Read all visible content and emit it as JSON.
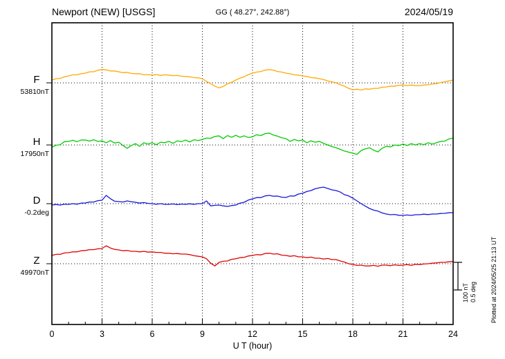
{
  "header": {
    "station": "Newport (NEW)  [USGS]",
    "coords": "GG ( 48.27°, 242.88°)",
    "date": "2024/05/19"
  },
  "footer": {
    "plotted_at": "Plotted at 2024/05/25 21:13 UT"
  },
  "chart_data": {
    "type": "line",
    "title": "Newport (NEW) [USGS] magnetogram 2024/05/19",
    "xlabel": "U T (hour)",
    "x_range": [
      0,
      24
    ],
    "x_ticks": [
      0,
      3,
      6,
      9,
      12,
      15,
      18,
      21,
      24
    ],
    "x_step_hours": 0.25,
    "grid": "dotted vertical lines every 3 hours; dotted horizontal baseline per trace",
    "legend_position": "left-of-axis trace labels",
    "scale_bar": {
      "nt_label": "100 nT",
      "deg_label": "0.5 deg",
      "nt_per_division": 100,
      "deg_per_division": 0.5
    },
    "series": [
      {
        "name": "F",
        "baseline_label": "53810nT",
        "baseline_value": 53810,
        "unit": "nT",
        "color": "#FFA800",
        "values": [
          10,
          15,
          16,
          22,
          25,
          29,
          29,
          33,
          35,
          40,
          40,
          46,
          48,
          47,
          43,
          43,
          40,
          37,
          38,
          34,
          33,
          33,
          29,
          30,
          28,
          30,
          27,
          29,
          28,
          26,
          27,
          24,
          23,
          22,
          19,
          18,
          15,
          5,
          -3,
          -12,
          -18,
          -13,
          -4,
          2,
          10,
          17,
          22,
          30,
          35,
          39,
          41,
          46,
          48,
          46,
          41,
          39,
          35,
          33,
          29,
          28,
          25,
          23,
          19,
          18,
          15,
          12,
          7,
          4,
          0,
          -7,
          -12,
          -20,
          -25,
          -23,
          -26,
          -22,
          -23,
          -20,
          -20,
          -16,
          -15,
          -12,
          -12,
          -9,
          -8,
          -10,
          -8,
          -10,
          -10,
          -8,
          -7,
          -4,
          -3,
          1,
          4,
          7,
          10
        ]
      },
      {
        "name": "H",
        "baseline_label": "17950nT",
        "baseline_value": 17950,
        "unit": "nT",
        "color": "#00CC00",
        "values": [
          -8,
          -1,
          1,
          12,
          13,
          17,
          12,
          18,
          18,
          14,
          19,
          13,
          15,
          8,
          16,
          7,
          10,
          -2,
          -12,
          -2,
          5,
          -5,
          8,
          3,
          8,
          1,
          10,
          8,
          13,
          6,
          15,
          12,
          18,
          11,
          19,
          16,
          20,
          25,
          24,
          31,
          33,
          23,
          34,
          28,
          35,
          28,
          33,
          27,
          30,
          37,
          34,
          41,
          43,
          36,
          32,
          26,
          23,
          13,
          20,
          15,
          18,
          8,
          15,
          10,
          13,
          6,
          0,
          -6,
          -10,
          -16,
          -22,
          -26,
          -30,
          -34,
          -20,
          -14,
          -10,
          -19,
          -25,
          -12,
          -5,
          -7,
          0,
          -2,
          3,
          -2,
          5,
          0,
          5,
          1,
          8,
          3,
          8,
          13,
          14,
          22,
          25
        ]
      },
      {
        "name": "D",
        "baseline_label": "-0.2deg",
        "baseline_value": -0.2,
        "unit": "deg",
        "color": "#1515DD",
        "values": [
          -0.025,
          -0.015,
          -0.025,
          -0.01,
          -0.013,
          0,
          -0.01,
          0.01,
          0.013,
          0.03,
          0.03,
          0.055,
          0.063,
          0.15,
          0.09,
          0.045,
          0.038,
          0.03,
          0.05,
          0.035,
          0.025,
          0.01,
          0.02,
          0.005,
          0,
          -0.01,
          0,
          -0.013,
          -0.013,
          -0.005,
          -0.018,
          -0.008,
          -0.013,
          -0.003,
          -0.013,
          0,
          0,
          0.05,
          -0.04,
          -0.03,
          -0.025,
          -0.04,
          -0.05,
          -0.035,
          -0.025,
          0.01,
          0.025,
          0.065,
          0.088,
          0.11,
          0.11,
          0.14,
          0.15,
          0.135,
          0.138,
          0.118,
          0.113,
          0.14,
          0.138,
          0.175,
          0.188,
          0.22,
          0.238,
          0.27,
          0.288,
          0.3,
          0.275,
          0.25,
          0.238,
          0.21,
          0.163,
          0.14,
          0.1,
          0.05,
          0,
          -0.045,
          -0.088,
          -0.118,
          -0.135,
          -0.168,
          -0.188,
          -0.2,
          -0.195,
          -0.21,
          -0.213,
          -0.205,
          -0.213,
          -0.2,
          -0.2,
          -0.19,
          -0.198,
          -0.188,
          -0.188,
          -0.178,
          -0.175,
          -0.165,
          -0.163
        ]
      },
      {
        "name": "Z",
        "baseline_label": "49970nT",
        "baseline_value": 49970,
        "unit": "nT",
        "color": "#E00000",
        "values": [
          30,
          34,
          34,
          39,
          40,
          43,
          43,
          47,
          48,
          51,
          51,
          54,
          55,
          65,
          57,
          52,
          50,
          47,
          48,
          45,
          45,
          43,
          45,
          42,
          43,
          41,
          41,
          38,
          38,
          36,
          37,
          35,
          35,
          33,
          29,
          27,
          25,
          18,
          2,
          -8,
          5,
          9,
          10,
          16,
          18,
          22,
          23,
          28,
          30,
          33,
          32,
          37,
          38,
          35,
          36,
          31,
          30,
          27,
          29,
          25,
          25,
          22,
          24,
          20,
          20,
          17,
          19,
          15,
          15,
          10,
          6,
          0,
          -3,
          -6,
          -5,
          -8,
          -8,
          -6,
          -9,
          -5,
          -5,
          -7,
          -4,
          -6,
          -5,
          -3,
          -6,
          -2,
          -3,
          -1,
          0,
          2,
          3,
          5,
          5,
          7,
          8
        ]
      }
    ]
  }
}
